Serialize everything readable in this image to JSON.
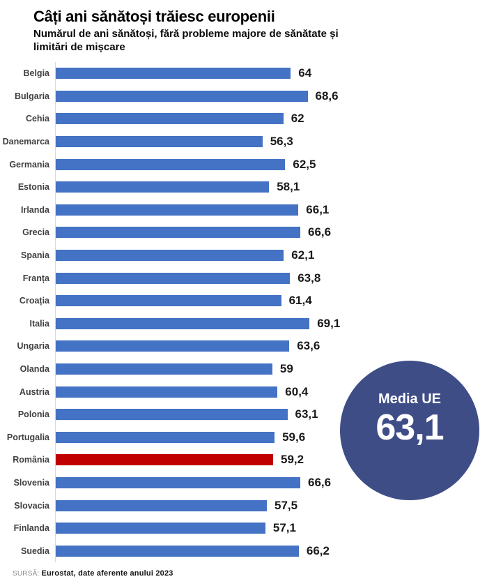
{
  "chart_data": {
    "type": "bar",
    "orientation": "horizontal",
    "title": "Câți ani sănătoși trăiesc europenii",
    "subtitle": "Numărul de ani sănătoși, fără probleme majore de sănătate și limitări de mișcare",
    "categories": [
      "Belgia",
      "Bulgaria",
      "Cehia",
      "Danemarca",
      "Germania",
      "Estonia",
      "Irlanda",
      "Grecia",
      "Spania",
      "Franța",
      "Croația",
      "Italia",
      "Ungaria",
      "Olanda",
      "Austria",
      "Polonia",
      "Portugalia",
      "România",
      "Slovenia",
      "Slovacia",
      "Finlanda",
      "Suedia"
    ],
    "values": [
      64,
      68.6,
      62,
      56.3,
      62.5,
      58.1,
      66.1,
      66.6,
      62.1,
      63.8,
      61.4,
      69.1,
      63.6,
      59,
      60.4,
      63.1,
      59.6,
      59.2,
      66.6,
      57.5,
      57.1,
      66.2
    ],
    "value_labels": [
      "64",
      "68,6",
      "62",
      "56,3",
      "62,5",
      "58,1",
      "66,1",
      "66,6",
      "62,1",
      "63,8",
      "61,4",
      "69,1",
      "63,6",
      "59",
      "60,4",
      "63,1",
      "59,6",
      "59,2",
      "66,6",
      "57,5",
      "57,1",
      "66,2"
    ],
    "highlight": {
      "category": "România",
      "color": "#c00000"
    },
    "xlim": [
      0,
      70
    ],
    "grid": false,
    "legend": false,
    "xlabel": "",
    "ylabel": "",
    "annotation": {
      "label": "Media UE",
      "value": "63,1"
    }
  },
  "source": {
    "prefix": "SURSĂ:",
    "text": "Eurostat, date aferente anului 2023"
  },
  "colors": {
    "bar": "#4472c4",
    "highlight_bar": "#c00000",
    "badge_circle": "#3f4d87",
    "axis_line": "#d9d9d9",
    "country_label": "#404040",
    "value_label": "#1a1a1a"
  }
}
